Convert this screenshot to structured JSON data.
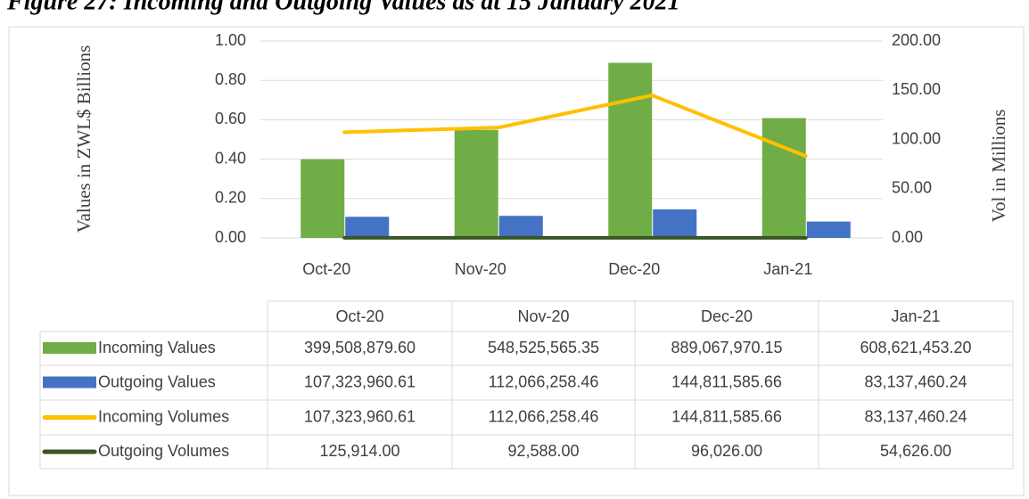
{
  "chart_data": {
    "type": "bar_line",
    "title": "Figure 27: Incoming and Outgoing Values as at 15 January 2021",
    "y_label": "Values in ZWL$ Billions",
    "y2_label": "Vol in Millions",
    "categories": [
      "Oct-20",
      "Nov-20",
      "Dec-20",
      "Jan-21"
    ],
    "ylim": [
      0,
      1
    ],
    "yticks": [
      {
        "value": 0,
        "label": "0.00"
      },
      {
        "value": 0.2,
        "label": "0.20"
      },
      {
        "value": 0.4,
        "label": "0.40"
      },
      {
        "value": 0.6,
        "label": "0.60"
      },
      {
        "value": 0.8,
        "label": "0.80"
      },
      {
        "value": 1,
        "label": "1.00"
      }
    ],
    "y2lim": [
      0,
      200
    ],
    "y2ticks": [
      {
        "value": 0,
        "label": "0.00"
      },
      {
        "value": 50,
        "label": "50.00"
      },
      {
        "value": 100,
        "label": "100.00"
      },
      {
        "value": 150,
        "label": "150.00"
      },
      {
        "value": 200,
        "label": "200.00"
      }
    ],
    "grid": true,
    "series": [
      {
        "name": "Incoming Values",
        "kind": "bar",
        "color": "#70ad47",
        "axis": "y",
        "values": [
          0.3995088796,
          0.54852556535,
          0.88906797015,
          0.6086214532
        ],
        "value_labels": [
          "399,508,879.60",
          "548,525,565.35",
          "889,067,970.15",
          "608,621,453.20"
        ]
      },
      {
        "name": "Outgoing Values",
        "kind": "bar",
        "color": "#4472c4",
        "axis": "y",
        "values": [
          0.10732396061,
          0.11206625846,
          0.14481158566,
          0.08313746024
        ],
        "value_labels": [
          "107,323,960.61",
          "112,066,258.46",
          "144,811,585.66",
          "83,137,460.24"
        ]
      },
      {
        "name": "Incoming Volumes",
        "kind": "line",
        "color": "#ffc000",
        "axis": "y2",
        "values": [
          107.32396061,
          112.06625846,
          144.81158566,
          83.13746024
        ],
        "value_labels": [
          "107,323,960.61",
          "112,066,258.46",
          "144,811,585.66",
          "83,137,460.24"
        ]
      },
      {
        "name": "Outgoing Volumes",
        "kind": "line",
        "color": "#375623",
        "axis": "y2",
        "values": [
          0.125914,
          0.092588,
          0.096026,
          0.054626
        ],
        "value_labels": [
          "125,914.00",
          "92,588.00",
          "96,026.00",
          "54,626.00"
        ]
      }
    ]
  }
}
